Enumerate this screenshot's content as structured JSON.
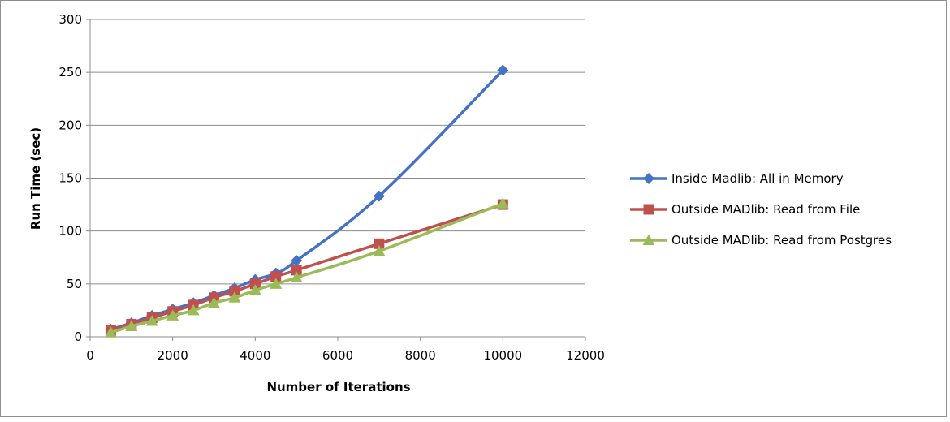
{
  "chart_data": {
    "type": "line",
    "title": "",
    "xlabel": "Number of Iterations",
    "ylabel": "Run Time (sec)",
    "xlim": [
      0,
      12000
    ],
    "ylim": [
      0,
      300
    ],
    "x_ticks": [
      0,
      2000,
      4000,
      6000,
      8000,
      10000,
      12000
    ],
    "y_ticks": [
      0,
      50,
      100,
      150,
      200,
      250,
      300
    ],
    "grid": "horizontal",
    "legend_position": "right",
    "series": [
      {
        "name": "Inside Madlib: All in Memory",
        "color": "#4472C4",
        "marker": "diamond",
        "x": [
          500,
          1000,
          1500,
          2000,
          2500,
          3000,
          3500,
          4000,
          4500,
          5000,
          7000,
          10000
        ],
        "values": [
          7,
          13,
          20,
          26,
          32,
          39,
          46,
          54,
          60,
          72,
          133,
          252
        ]
      },
      {
        "name": "Outside MADlib: Read from File",
        "color": "#C0504D",
        "marker": "square",
        "x": [
          500,
          1000,
          1500,
          2000,
          2500,
          3000,
          3500,
          4000,
          4500,
          5000,
          7000,
          10000
        ],
        "values": [
          6,
          12,
          18,
          24,
          30,
          37,
          43,
          50,
          57,
          63,
          88,
          125
        ]
      },
      {
        "name": "Outside MADlib: Read from Postgres",
        "color": "#9BBB59",
        "marker": "triangle",
        "x": [
          500,
          1000,
          1500,
          2000,
          2500,
          3000,
          3500,
          4000,
          4500,
          5000,
          7000,
          10000
        ],
        "values": [
          4,
          10,
          15,
          20,
          25,
          32,
          37,
          44,
          50,
          56,
          81,
          126
        ]
      }
    ]
  }
}
